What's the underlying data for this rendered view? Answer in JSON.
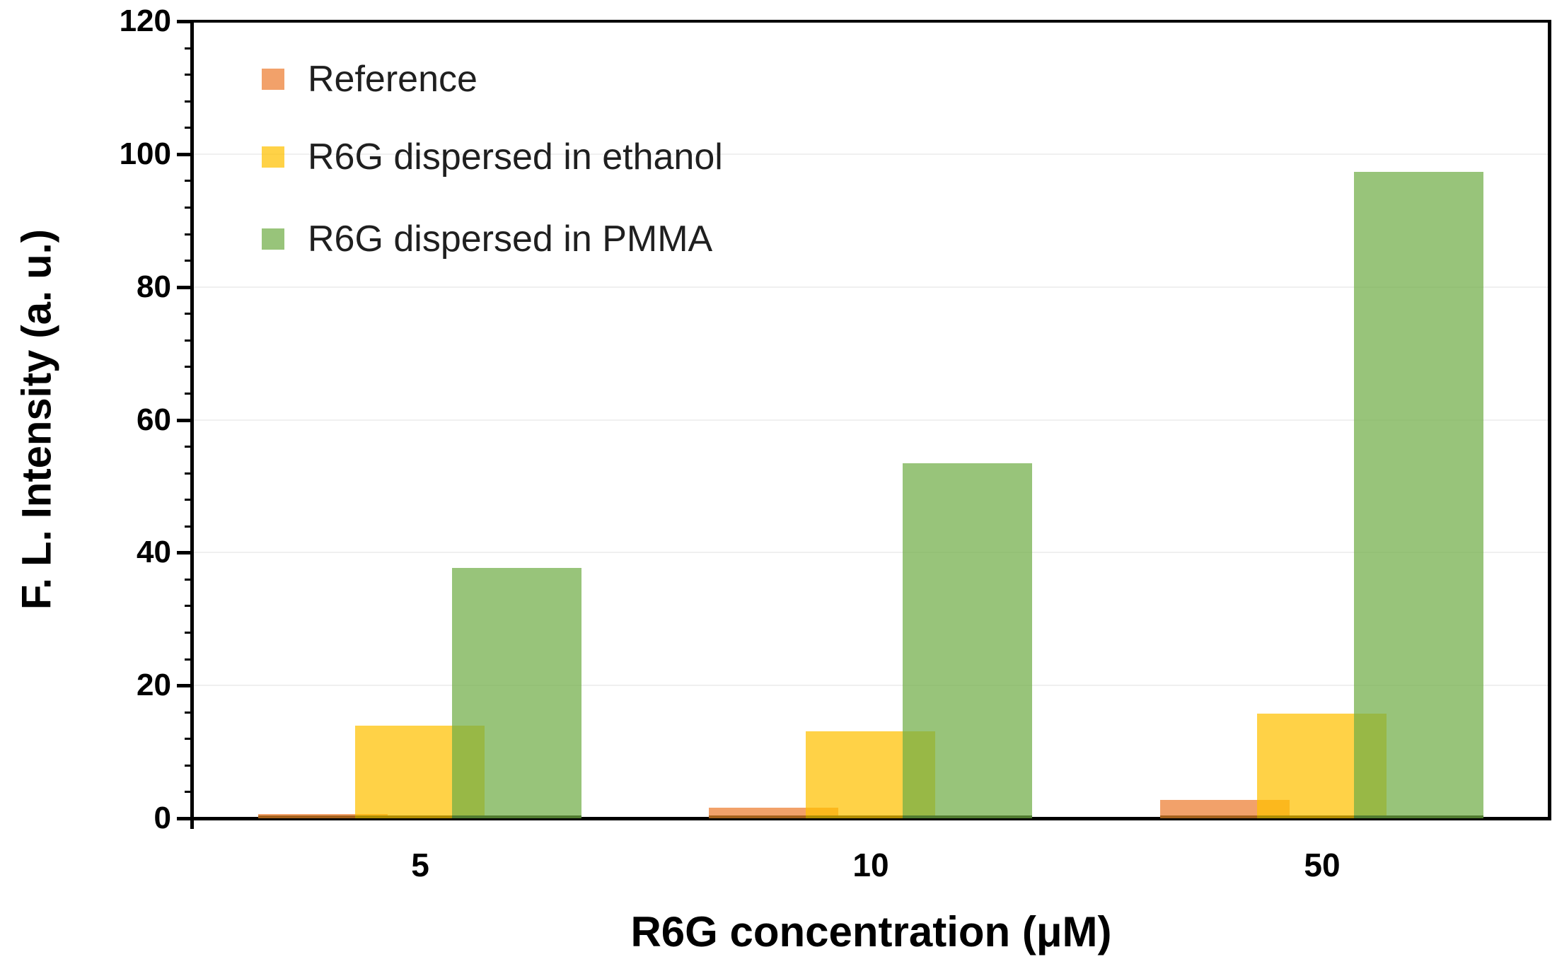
{
  "chart_data": {
    "type": "bar",
    "title": "",
    "categories": [
      "5",
      "10",
      "50"
    ],
    "series": [
      {
        "name": "Reference",
        "color": "#ED7D31",
        "fill": "rgba(237,125,49,0.72)",
        "edge": "#A5611C",
        "values": [
          0.6,
          1.6,
          2.8
        ]
      },
      {
        "name": "R6G dispersed in ethanol",
        "color": "#FFC000",
        "fill": "rgba(255,192,0,0.72)",
        "edge": "#B08C00",
        "values": [
          13.9,
          13.1,
          15.8
        ]
      },
      {
        "name": "R6G dispersed in PMMA",
        "color": "#70AD47",
        "fill": "rgba(112,173,71,0.72)",
        "edge": "#507B2F",
        "values": [
          37.7,
          53.5,
          97.3
        ]
      }
    ],
    "xlabel": "R6G concentration (μM)",
    "ylabel": "F. L. Intensity (a. u.)",
    "ylim": [
      0,
      120
    ],
    "ytick_step": 20,
    "yminor_step": 4,
    "grid": "horizontal-light",
    "grid_color": "#F0F0F0",
    "axis_color": "#000000",
    "background": "#FFFFFF",
    "legend_position": "top-left-inside",
    "bar_style": "overlapping-semi-transparent"
  }
}
